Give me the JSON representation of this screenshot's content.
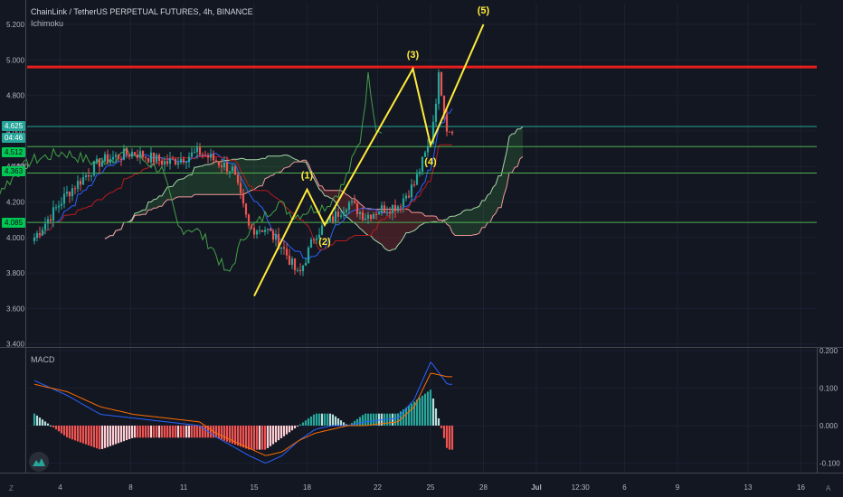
{
  "header": {
    "title": "ChainLink / TetherUS PERPETUAL FUTURES, 4h, BINANCE",
    "indicator": "Ichimoku"
  },
  "macd_label": "MACD",
  "badges": {
    "last_price": "4.625",
    "countdown": "04:46",
    "level_1": "4.512",
    "level_2": "4.363",
    "level_3": "4.085",
    "level_2_partial": "4.400"
  },
  "colors": {
    "background": "#131722",
    "up": "#26a69a",
    "down": "#ef5350",
    "wave": "#ffeb3b",
    "resistance": "#e91e1e",
    "support": "#4caf50",
    "macd": "#2962ff",
    "signal": "#ff6d00"
  },
  "corner_labels": {
    "left": "Z",
    "right": "A"
  },
  "chart_data": [
    {
      "type": "candlestick",
      "title": "ChainLink / TetherUS PERPETUAL FUTURES, 4h, BINANCE",
      "ylim": [
        3.4,
        5.26
      ],
      "y_ticks": [
        "5.200",
        "5.000",
        "4.800",
        "4.600",
        "4.400",
        "4.200",
        "4.000",
        "3.800",
        "3.600",
        "3.400"
      ],
      "x_ticks": [
        "4",
        "8",
        "11",
        "15",
        "18",
        "22",
        "25",
        "28",
        "Jul",
        "12:30",
        "6",
        "9",
        "13",
        "16"
      ],
      "horizontal_lines": [
        {
          "price": 4.96,
          "role": "resistance"
        },
        {
          "price": 4.625,
          "role": "last_price"
        },
        {
          "price": 4.512,
          "role": "level"
        },
        {
          "price": 4.363,
          "role": "level"
        },
        {
          "price": 4.085,
          "role": "level"
        }
      ],
      "elliott_wave": [
        {
          "label": "",
          "x": "Jun 15",
          "y": 3.67
        },
        {
          "label": "(1)",
          "x": "Jun 18",
          "y": 4.27
        },
        {
          "label": "(2)",
          "x": "Jun 19",
          "y": 4.07
        },
        {
          "label": "(3)",
          "x": "Jun 24",
          "y": 4.95
        },
        {
          "label": "(4)",
          "x": "Jun 25",
          "y": 4.52
        },
        {
          "label": "(5)",
          "x": "Jun 28",
          "y": 5.2
        }
      ],
      "price_path": [
        [
          0,
          4.0
        ],
        [
          2,
          4.25
        ],
        [
          4,
          4.43
        ],
        [
          6,
          4.48
        ],
        [
          8,
          4.42
        ],
        [
          10,
          4.48
        ],
        [
          12,
          4.38
        ],
        [
          13,
          4.05
        ],
        [
          14,
          4.05
        ],
        [
          15,
          3.95
        ],
        [
          16,
          3.78
        ],
        [
          17,
          4.02
        ],
        [
          18,
          4.1
        ],
        [
          19,
          4.2
        ],
        [
          20,
          4.12
        ],
        [
          21,
          4.16
        ],
        [
          22,
          4.18
        ],
        [
          23,
          4.3
        ],
        [
          24,
          4.55
        ],
        [
          24.5,
          4.92
        ],
        [
          25,
          4.6
        ],
        [
          25.3,
          4.62
        ]
      ],
      "indicator": "Ichimoku"
    },
    {
      "type": "macd",
      "title": "MACD",
      "ylim": [
        -0.12,
        0.2
      ],
      "y_ticks": [
        "0.200",
        "0.100",
        "0.000",
        "-0.100"
      ],
      "macd_path": [
        [
          0,
          0.12
        ],
        [
          2,
          0.08
        ],
        [
          4,
          0.03
        ],
        [
          6,
          0.02
        ],
        [
          8,
          0.01
        ],
        [
          10,
          0.0
        ],
        [
          11,
          -0.03
        ],
        [
          13,
          -0.08
        ],
        [
          14,
          -0.1
        ],
        [
          15,
          -0.08
        ],
        [
          16,
          -0.04
        ],
        [
          17,
          -0.01
        ],
        [
          18,
          0.0
        ],
        [
          19,
          0.0
        ],
        [
          20,
          0.01
        ],
        [
          22,
          0.02
        ],
        [
          23,
          0.07
        ],
        [
          24,
          0.17
        ],
        [
          25,
          0.11
        ]
      ],
      "signal_path": [
        [
          0,
          0.11
        ],
        [
          2,
          0.09
        ],
        [
          4,
          0.05
        ],
        [
          6,
          0.03
        ],
        [
          8,
          0.02
        ],
        [
          10,
          0.01
        ],
        [
          11,
          -0.02
        ],
        [
          13,
          -0.06
        ],
        [
          14,
          -0.08
        ],
        [
          15,
          -0.07
        ],
        [
          16,
          -0.04
        ],
        [
          17,
          -0.02
        ],
        [
          18,
          -0.01
        ],
        [
          19,
          0.0
        ],
        [
          20,
          0.0
        ],
        [
          22,
          0.01
        ],
        [
          23,
          0.05
        ],
        [
          24,
          0.14
        ],
        [
          25,
          0.13
        ]
      ]
    }
  ]
}
